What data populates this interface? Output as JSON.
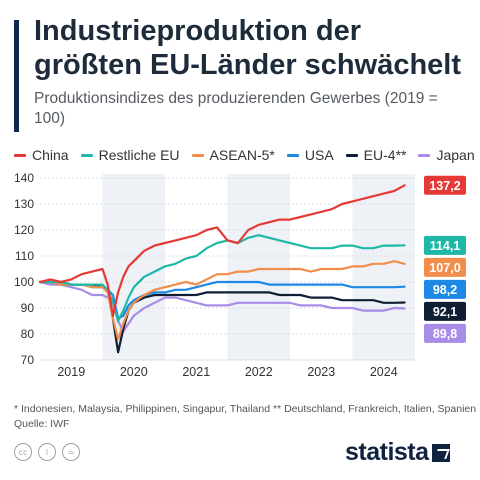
{
  "title": "Industrieproduktion der größten EU-Länder schwächelt",
  "subtitle": "Produktionsindizes des produzierenden Gewerbes (2019 = 100)",
  "footnote": "* Indonesien, Malaysia, Philippinen, Singapur, Thailand    ** Deutschland, Frankreich, Italien, Spanien",
  "source": "Quelle: IWF",
  "brand": "statista",
  "cc_icons": [
    "cc-icon",
    "person-icon",
    "equals-icon"
  ],
  "chart_data": {
    "type": "line",
    "x": [
      "2019-01",
      "2019-03",
      "2019-05",
      "2019-07",
      "2019-09",
      "2019-11",
      "2020-01",
      "2020-02",
      "2020-03",
      "2020-04",
      "2020-05",
      "2020-06",
      "2020-07",
      "2020-09",
      "2020-11",
      "2021-01",
      "2021-03",
      "2021-05",
      "2021-07",
      "2021-09",
      "2021-11",
      "2022-01",
      "2022-03",
      "2022-05",
      "2022-07",
      "2022-09",
      "2022-11",
      "2023-01",
      "2023-03",
      "2023-05",
      "2023-07",
      "2023-09",
      "2023-11",
      "2024-01",
      "2024-03",
      "2024-05",
      "2024-07",
      "2024-09",
      "2024-11"
    ],
    "xticks": [
      "2019",
      "2020",
      "2021",
      "2022",
      "2023",
      "2024"
    ],
    "ylim": [
      70,
      140
    ],
    "yticks": [
      70,
      80,
      90,
      100,
      110,
      120,
      130,
      140
    ],
    "shaded_years": [
      "2020",
      "2022",
      "2024"
    ],
    "grid": true,
    "legend_position": "top",
    "series": [
      {
        "name": "China",
        "color": "#e53935",
        "end_label": "137,2",
        "values": [
          100,
          101,
          100,
          101,
          103,
          104,
          105,
          99,
          87,
          96,
          102,
          106,
          108,
          112,
          114,
          115,
          116,
          117,
          118,
          120,
          121,
          116,
          115,
          120,
          122,
          123,
          124,
          124,
          125,
          126,
          127,
          128,
          130,
          131,
          132,
          133,
          134,
          135,
          137.2
        ]
      },
      {
        "name": "Restliche EU",
        "color": "#1fb8a8",
        "end_label": "114,1",
        "values": [
          100,
          100,
          100,
          99,
          99,
          99,
          99,
          97,
          92,
          85,
          89,
          94,
          98,
          102,
          104,
          106,
          107,
          109,
          110,
          113,
          115,
          116,
          115,
          117,
          118,
          117,
          116,
          115,
          114,
          113,
          113,
          113,
          114,
          114,
          113,
          113,
          114,
          114,
          114.1
        ]
      },
      {
        "name": "ASEAN-5*",
        "color": "#f28e4c",
        "end_label": "107,0",
        "values": [
          100,
          100,
          99,
          99,
          99,
          98,
          98,
          96,
          86,
          78,
          84,
          89,
          92,
          95,
          97,
          98,
          99,
          100,
          99,
          101,
          103,
          103,
          104,
          104,
          105,
          105,
          105,
          105,
          105,
          104,
          105,
          105,
          105,
          106,
          106,
          107,
          107,
          108,
          107.0
        ]
      },
      {
        "name": "USA",
        "color": "#1e88e5",
        "end_label": "98,2",
        "values": [
          100,
          100,
          99,
          99,
          99,
          98,
          98,
          97,
          95,
          86,
          87,
          91,
          93,
          95,
          96,
          96,
          97,
          97,
          98,
          99,
          100,
          100,
          100,
          100,
          100,
          99,
          99,
          99,
          99,
          99,
          99,
          99,
          99,
          98,
          98,
          98,
          98,
          98,
          98.2
        ]
      },
      {
        "name": "EU-4**",
        "color": "#0f1e33",
        "end_label": "92,1",
        "values": [
          100,
          100,
          100,
          99,
          99,
          99,
          98,
          97,
          86,
          73,
          82,
          89,
          92,
          94,
          95,
          95,
          95,
          95,
          95,
          96,
          96,
          96,
          96,
          96,
          96,
          96,
          95,
          95,
          95,
          94,
          94,
          94,
          93,
          93,
          93,
          93,
          92,
          92,
          92.1
        ]
      },
      {
        "name": "Japan",
        "color": "#a98be8",
        "end_label": "89,8",
        "values": [
          100,
          99,
          99,
          98,
          97,
          95,
          95,
          94,
          93,
          85,
          81,
          84,
          87,
          90,
          92,
          94,
          94,
          93,
          92,
          91,
          91,
          91,
          92,
          92,
          92,
          92,
          92,
          92,
          91,
          91,
          91,
          90,
          90,
          90,
          89,
          89,
          89,
          90,
          89.8
        ]
      }
    ]
  }
}
